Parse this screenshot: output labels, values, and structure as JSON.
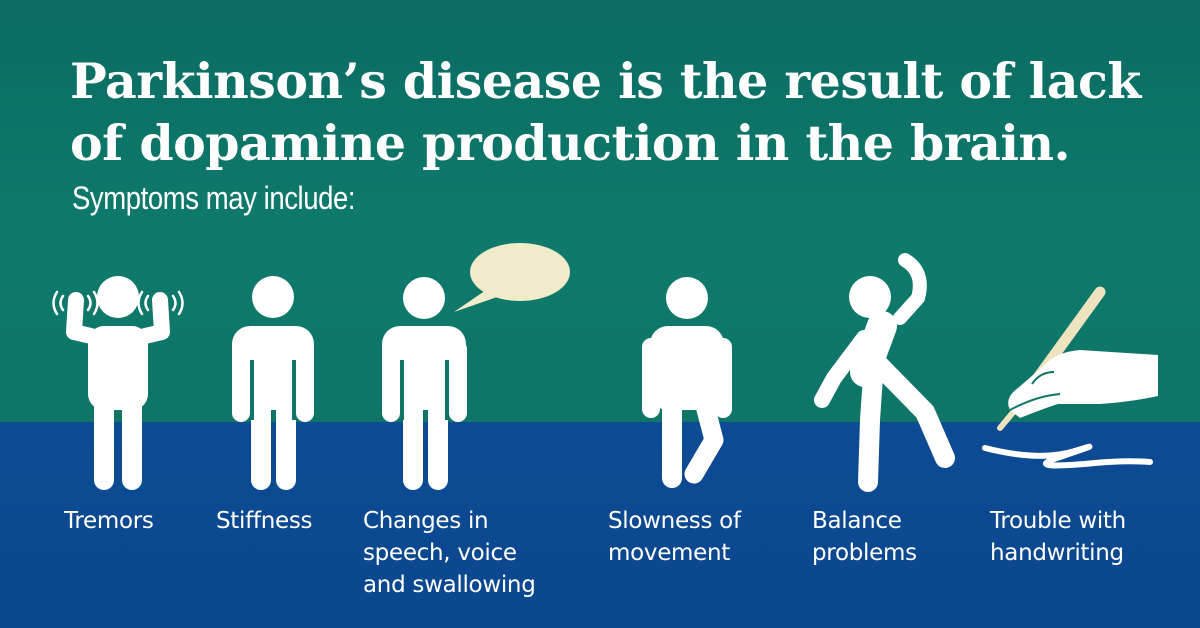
{
  "headline": {
    "line1": "Parkinson’s disease is the result of lack",
    "line2": "of dopamine production in the brain."
  },
  "subheading": "Symptoms may include:",
  "colors": {
    "top_background": "#0e7567",
    "bottom_background": "#0b4a8f",
    "figure": "#ffffff",
    "speech_bubble": "#f0ebc8",
    "pen": "#ede3bf"
  },
  "symptoms": [
    {
      "icon": "tremor-figure-icon",
      "lines": [
        "Tremors"
      ]
    },
    {
      "icon": "stiff-figure-icon",
      "lines": [
        "Stiffness"
      ]
    },
    {
      "icon": "speaking-figure-icon",
      "lines": [
        "Changes in",
        "speech, voice",
        "and swallowing"
      ]
    },
    {
      "icon": "slow-walking-figure-icon",
      "lines": [
        "Slowness of",
        "movement"
      ]
    },
    {
      "icon": "off-balance-figure-icon",
      "lines": [
        "Balance",
        "problems"
      ]
    },
    {
      "icon": "hand-writing-icon",
      "lines": [
        "Trouble with",
        "handwriting"
      ]
    }
  ]
}
